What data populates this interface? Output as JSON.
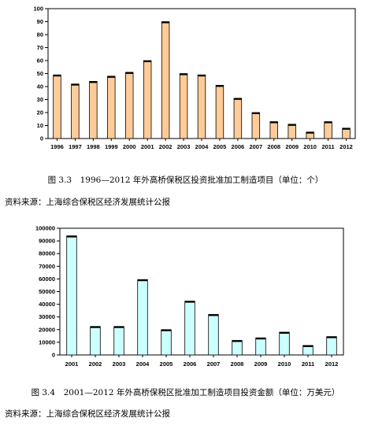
{
  "chart_data": [
    {
      "type": "bar",
      "categories": [
        "1996",
        "1997",
        "1998",
        "1999",
        "2000",
        "2001",
        "2002",
        "2003",
        "2004",
        "2005",
        "2006",
        "2007",
        "2008",
        "2009",
        "2010",
        "2011",
        "2012"
      ],
      "values": [
        49,
        42,
        44,
        48,
        51,
        60,
        90,
        50,
        49,
        41,
        31,
        20,
        13,
        11,
        5,
        13,
        8
      ],
      "ylim": [
        0,
        100
      ],
      "yticks": [
        0,
        10,
        20,
        30,
        40,
        50,
        60,
        70,
        80,
        90,
        100
      ],
      "title": "",
      "xlabel": "",
      "ylabel": "",
      "grid": false,
      "bar_color": "#FFCC99"
    },
    {
      "type": "bar",
      "categories": [
        "2001",
        "2002",
        "2003",
        "2004",
        "2005",
        "2006",
        "2007",
        "2008",
        "2009",
        "2010",
        "2011",
        "2012"
      ],
      "values": [
        94000,
        22500,
        22500,
        59500,
        20000,
        42500,
        32000,
        11500,
        13500,
        18000,
        7500,
        14500
      ],
      "ylim": [
        0,
        100000
      ],
      "yticks": [
        0,
        10000,
        20000,
        30000,
        40000,
        50000,
        60000,
        70000,
        80000,
        90000,
        100000
      ],
      "title": "",
      "xlabel": "",
      "ylabel": "",
      "grid": false,
      "bar_color": "#CCFFFF"
    }
  ],
  "figure1": {
    "caption": "图 3.3　1996—2012 年外高桥保税区投资批准加工制造项目（单位：个）",
    "source": "资料来源：上海综合保税区经济发展统计公报"
  },
  "figure2": {
    "caption": "图 3.4　2001—2012 年外高桥保税区批准加工制造项目投资金额（单位：万美元）",
    "source": "资料来源：上海综合保税区经济发展统计公报"
  }
}
